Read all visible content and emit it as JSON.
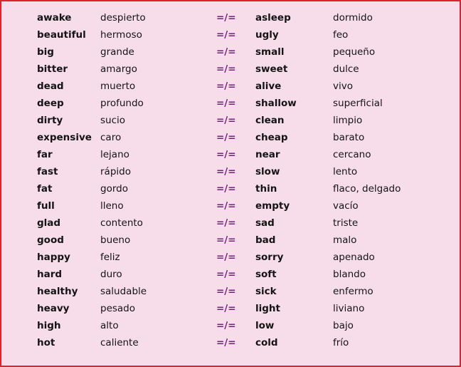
{
  "separator": "=/=",
  "rows": [
    {
      "en_a": "awake",
      "es_a": "despierto",
      "en_b": "asleep",
      "es_b": "dormido"
    },
    {
      "en_a": "beautiful",
      "es_a": "hermoso",
      "en_b": "ugly",
      "es_b": "feo"
    },
    {
      "en_a": "big",
      "es_a": "grande",
      "en_b": "small",
      "es_b": "pequeño"
    },
    {
      "en_a": "bitter",
      "es_a": "amargo",
      "en_b": "sweet",
      "es_b": "dulce"
    },
    {
      "en_a": "dead",
      "es_a": "muerto",
      "en_b": "alive",
      "es_b": "vivo"
    },
    {
      "en_a": "deep",
      "es_a": "profundo",
      "en_b": "shallow",
      "es_b": "superficial"
    },
    {
      "en_a": "dirty",
      "es_a": "sucio",
      "en_b": "clean",
      "es_b": "limpio"
    },
    {
      "en_a": "expensive",
      "es_a": "caro",
      "en_b": "cheap",
      "es_b": "barato"
    },
    {
      "en_a": "far",
      "es_a": "lejano",
      "en_b": "near",
      "es_b": "cercano"
    },
    {
      "en_a": "fast",
      "es_a": "rápido",
      "en_b": "slow",
      "es_b": "lento"
    },
    {
      "en_a": "fat",
      "es_a": "gordo",
      "en_b": "thin",
      "es_b": "flaco, delgado"
    },
    {
      "en_a": "full",
      "es_a": "lleno",
      "en_b": "empty",
      "es_b": "vacío"
    },
    {
      "en_a": "glad",
      "es_a": "contento",
      "en_b": "sad",
      "es_b": "triste"
    },
    {
      "en_a": "good",
      "es_a": "bueno",
      "en_b": "bad",
      "es_b": "malo"
    },
    {
      "en_a": "happy",
      "es_a": "feliz",
      "en_b": "sorry",
      "es_b": "apenado"
    },
    {
      "en_a": "hard",
      "es_a": "duro",
      "en_b": "soft",
      "es_b": "blando"
    },
    {
      "en_a": "healthy",
      "es_a": "saludable",
      "en_b": "sick",
      "es_b": "enfermo"
    },
    {
      "en_a": "heavy",
      "es_a": "pesado",
      "en_b": "light",
      "es_b": "liviano"
    },
    {
      "en_a": "high",
      "es_a": "alto",
      "en_b": "low",
      "es_b": "bajo"
    },
    {
      "en_a": "hot",
      "es_a": "caliente",
      "en_b": "cold",
      "es_b": "frío"
    }
  ]
}
